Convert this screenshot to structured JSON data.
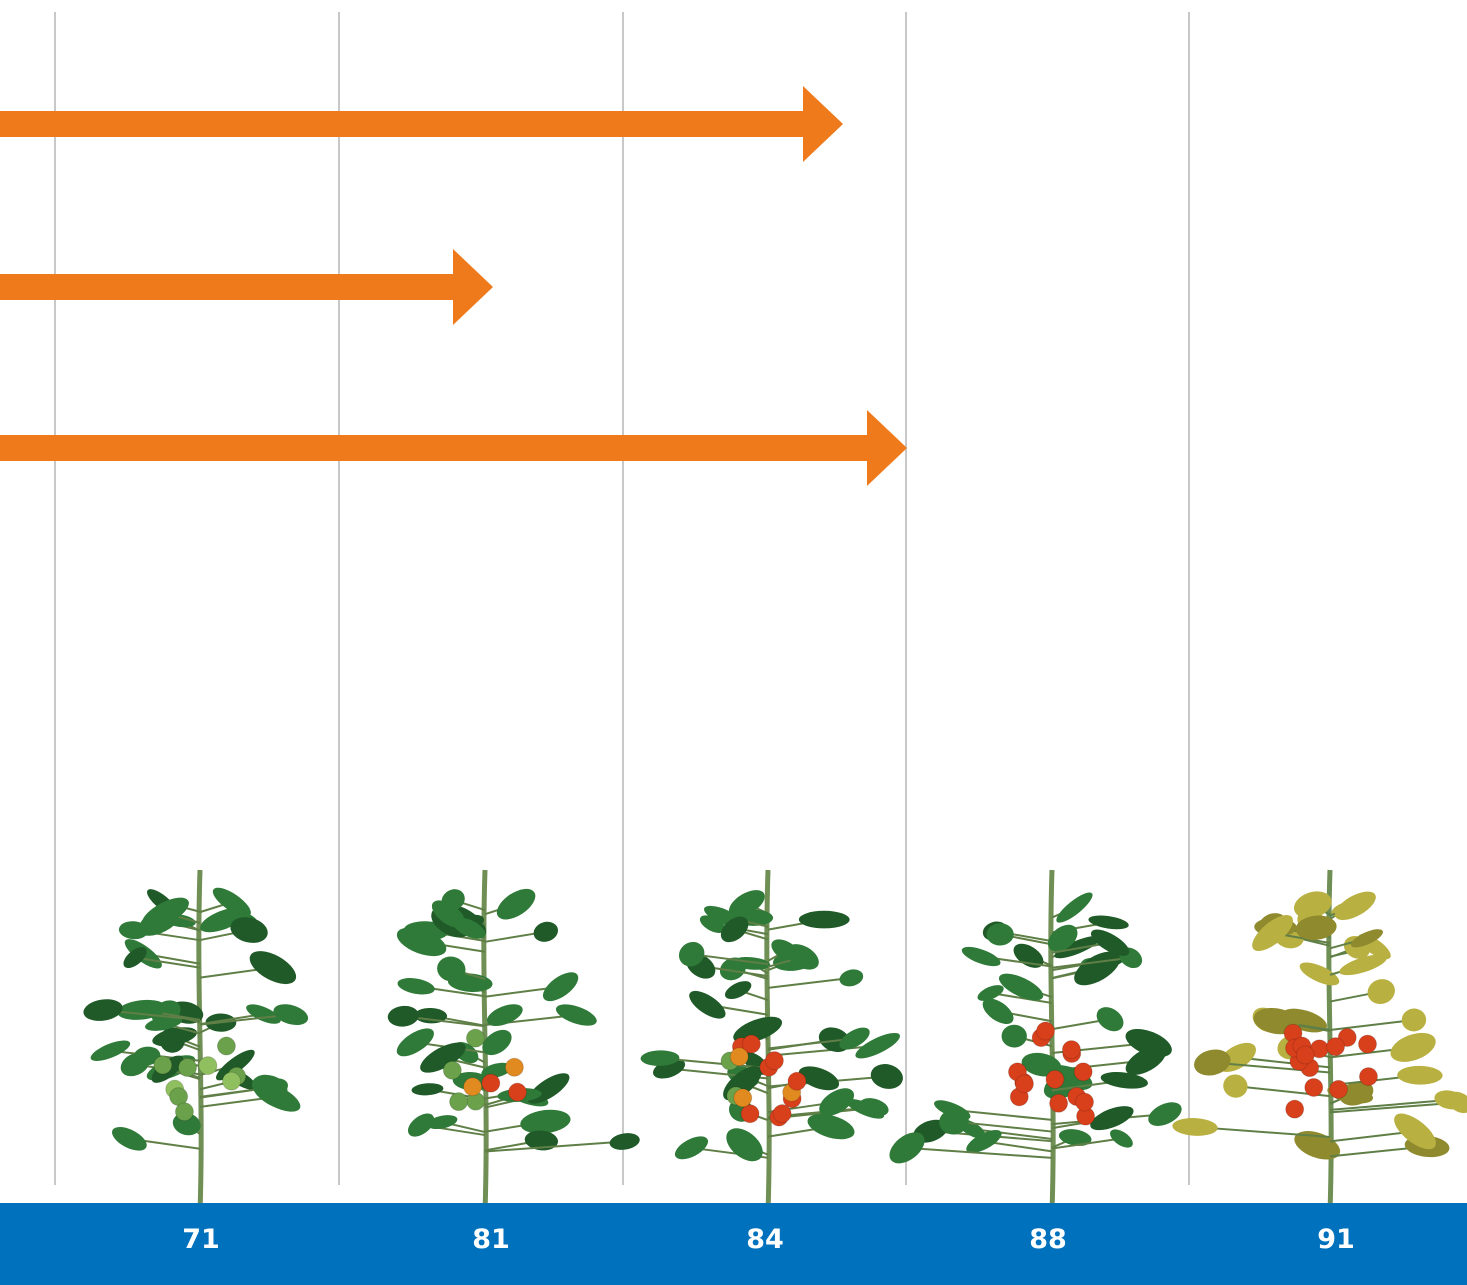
{
  "colors": {
    "arrow": "#ee7a1c",
    "footer": "#0071bc",
    "grid": "#c8c8c8",
    "leaf_green": "#2f7a38",
    "leaf_yellow": "#b9b042",
    "tomato_red": "#d8401c",
    "tomato_green": "#6aa14a",
    "tomato_orange": "#e08a20"
  },
  "stage_labels": [
    "71",
    "81",
    "84",
    "88",
    "91"
  ],
  "arrows": [
    {
      "level": "upper"
    },
    {
      "level": "middle"
    },
    {
      "level": "lower"
    }
  ],
  "plants": [
    {
      "foliage": "green",
      "fruit": "green"
    },
    {
      "foliage": "green",
      "fruit": "mixed-green-orange-red"
    },
    {
      "foliage": "green",
      "fruit": "mostly-red"
    },
    {
      "foliage": "green",
      "fruit": "red"
    },
    {
      "foliage": "yellow",
      "fruit": "red"
    }
  ]
}
